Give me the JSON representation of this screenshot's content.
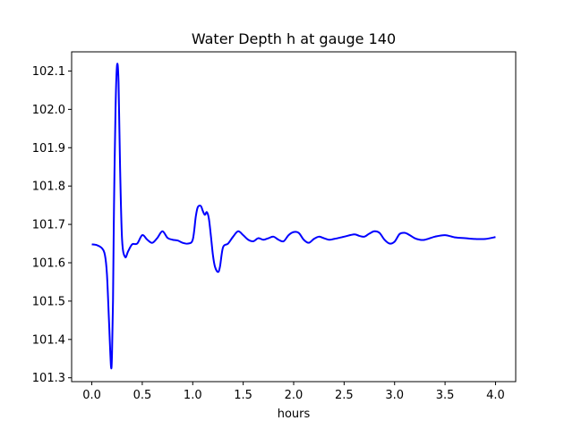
{
  "chart_data": {
    "type": "line",
    "title": "Water Depth h at gauge 140",
    "xlabel": "hours",
    "ylabel": "",
    "xlim": [
      -0.2,
      4.2
    ],
    "ylim": [
      101.29,
      102.15
    ],
    "xticks": [
      0.0,
      0.5,
      1.0,
      1.5,
      2.0,
      2.5,
      3.0,
      3.5,
      4.0
    ],
    "xtick_labels": [
      "0.0",
      "0.5",
      "1.0",
      "1.5",
      "2.0",
      "2.5",
      "3.0",
      "3.5",
      "4.0"
    ],
    "yticks": [
      101.3,
      101.4,
      101.5,
      101.6,
      101.7,
      101.8,
      101.9,
      102.0,
      102.1
    ],
    "ytick_labels": [
      "101.3",
      "101.4",
      "101.5",
      "101.6",
      "101.7",
      "101.8",
      "101.9",
      "102.0",
      "102.1"
    ],
    "grid": false,
    "series": [
      {
        "color": "#0000ff",
        "x": [
          0.0,
          0.05,
          0.1,
          0.13,
          0.15,
          0.17,
          0.19,
          0.2,
          0.21,
          0.22,
          0.235,
          0.25,
          0.265,
          0.28,
          0.3,
          0.33,
          0.36,
          0.4,
          0.45,
          0.5,
          0.55,
          0.6,
          0.65,
          0.7,
          0.75,
          0.8,
          0.85,
          0.9,
          0.95,
          1.0,
          1.03,
          1.05,
          1.08,
          1.1,
          1.12,
          1.14,
          1.16,
          1.18,
          1.2,
          1.22,
          1.25,
          1.27,
          1.3,
          1.35,
          1.4,
          1.45,
          1.5,
          1.55,
          1.6,
          1.65,
          1.7,
          1.75,
          1.8,
          1.85,
          1.9,
          1.95,
          2.0,
          2.05,
          2.1,
          2.15,
          2.2,
          2.25,
          2.3,
          2.35,
          2.4,
          2.5,
          2.6,
          2.65,
          2.7,
          2.75,
          2.8,
          2.85,
          2.9,
          2.95,
          3.0,
          3.05,
          3.1,
          3.15,
          3.2,
          3.25,
          3.3,
          3.4,
          3.5,
          3.6,
          3.7,
          3.8,
          3.9,
          4.0
        ],
        "y": [
          101.648,
          101.646,
          101.638,
          101.62,
          101.57,
          101.45,
          101.33,
          101.36,
          101.5,
          101.75,
          102.0,
          102.115,
          102.07,
          101.85,
          101.66,
          101.615,
          101.63,
          101.648,
          101.65,
          101.672,
          101.66,
          101.652,
          101.665,
          101.682,
          101.665,
          101.66,
          101.658,
          101.652,
          101.65,
          101.66,
          101.72,
          101.745,
          101.748,
          101.735,
          101.725,
          101.732,
          101.715,
          101.67,
          101.62,
          101.59,
          101.576,
          101.59,
          101.64,
          101.65,
          101.668,
          101.682,
          101.672,
          101.66,
          101.656,
          101.664,
          101.66,
          101.664,
          101.668,
          101.66,
          101.656,
          101.672,
          101.68,
          101.678,
          101.66,
          101.652,
          101.662,
          101.668,
          101.664,
          101.66,
          101.662,
          101.668,
          101.674,
          101.67,
          101.668,
          101.676,
          101.682,
          101.678,
          101.66,
          101.65,
          101.655,
          101.675,
          101.678,
          101.672,
          101.664,
          101.66,
          101.66,
          101.668,
          101.672,
          101.666,
          101.664,
          101.662,
          101.662,
          101.667
        ]
      }
    ]
  }
}
